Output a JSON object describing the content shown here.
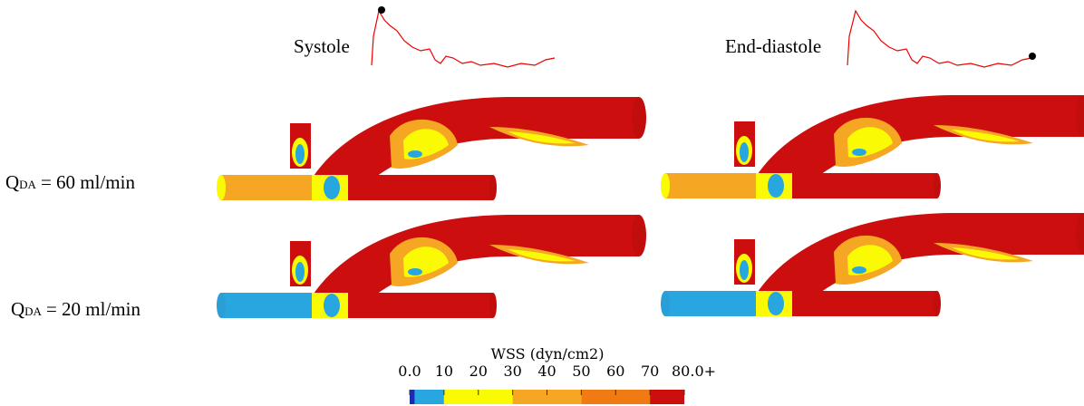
{
  "columns": [
    "Systole",
    "End-diastole"
  ],
  "rows": [
    {
      "symbol": "Q",
      "subscript": "DA",
      "text": "= 60 ml/min"
    },
    {
      "symbol": "Q",
      "subscript": "DA",
      "text": "= 20 ml/min"
    }
  ],
  "colorbar": {
    "title": "WSS (dyn/cm2)",
    "range": [
      0,
      80
    ],
    "ticks": [
      {
        "value": 0,
        "label": "0.0"
      },
      10,
      20,
      30,
      40,
      50,
      60,
      70,
      {
        "value": 80,
        "label": "80.0+"
      }
    ],
    "bands": [
      {
        "from": 0,
        "to": 1.5,
        "color": "#1c2bb0"
      },
      {
        "from": 1.5,
        "to": 10,
        "color": "#27a6e0"
      },
      {
        "from": 10,
        "to": 30,
        "color": "#fafa05"
      },
      {
        "from": 30,
        "to": 50,
        "color": "#f5a623"
      },
      {
        "from": 50,
        "to": 70,
        "color": "#f27a12"
      },
      {
        "from": 70,
        "to": 80,
        "color": "#cc0e0e"
      }
    ]
  }
}
